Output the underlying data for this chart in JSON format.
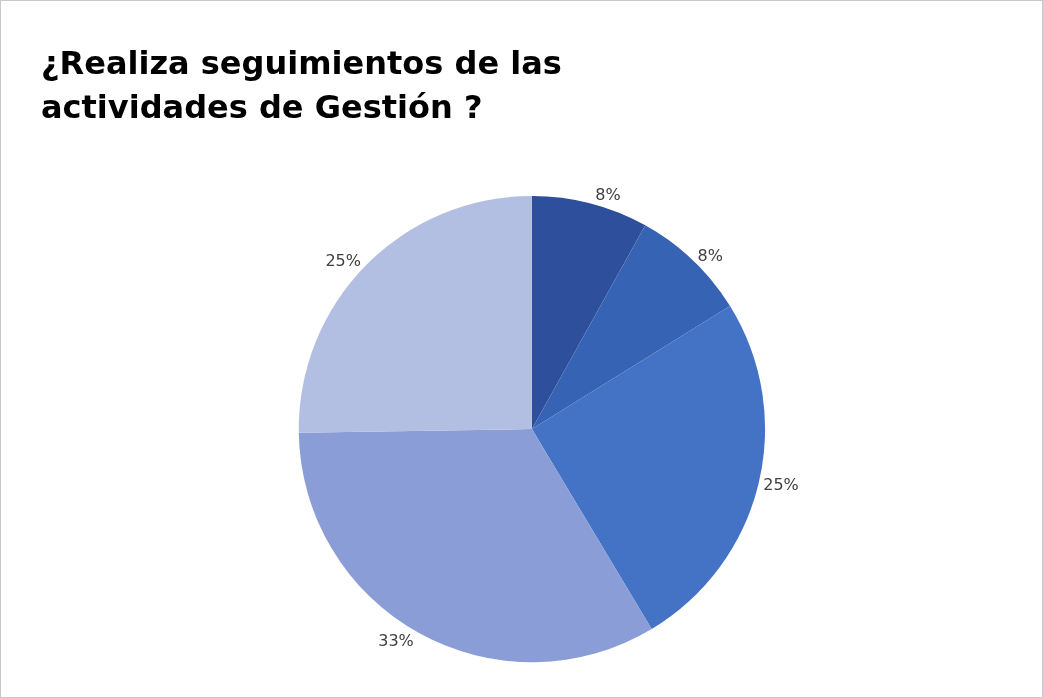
{
  "chart_data": {
    "type": "pie",
    "title": "¿Realiza seguimientos de las actividades de Gestión ?",
    "categories": [
      null,
      null,
      null,
      null,
      null
    ],
    "values": [
      8,
      8,
      25,
      33,
      25
    ],
    "value_labels": [
      "8%",
      "8%",
      "25%",
      "33%",
      "25%"
    ],
    "colors": [
      "#2e4f9c",
      "#3763b5",
      "#4472c4",
      "#8a9dd6",
      "#b3bfe2"
    ],
    "legend": false
  }
}
